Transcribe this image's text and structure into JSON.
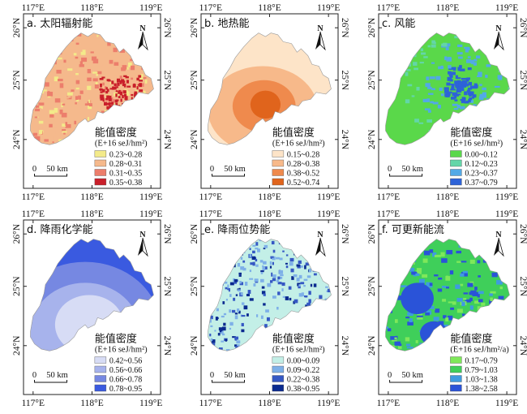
{
  "panels": [
    {
      "id": "a",
      "title": "a. 太阳辐射能",
      "theme": "solar",
      "legend_title": "能值密度",
      "unit": "(E+16 seJ/hm²)",
      "classes": [
        {
          "label": "0.23~0.28",
          "color": "#f3ea8a"
        },
        {
          "label": "0.28~0.31",
          "color": "#f5b98c"
        },
        {
          "label": "0.31~0.35",
          "color": "#ec7e6c"
        },
        {
          "label": "0.35~0.38",
          "color": "#c91f2a"
        }
      ]
    },
    {
      "id": "b",
      "title": "b. 地热能",
      "theme": "geo",
      "legend_title": "能值密度",
      "unit": "(E+16 seJ/hm²)",
      "classes": [
        {
          "label": "0.15~0.28",
          "color": "#fde4c8"
        },
        {
          "label": "0.28~0.38",
          "color": "#f7b98a"
        },
        {
          "label": "0.38~0.52",
          "color": "#ef8a4d"
        },
        {
          "label": "0.52~0.74",
          "color": "#e0641c"
        }
      ]
    },
    {
      "id": "c",
      "title": "c. 风能",
      "theme": "wind",
      "legend_title": "能值密度",
      "unit": "(E+16 seJ/hm²)",
      "classes": [
        {
          "label": "0.00~0.12",
          "color": "#5ad84a"
        },
        {
          "label": "0.12~0.23",
          "color": "#63d6a8"
        },
        {
          "label": "0.23~0.37",
          "color": "#52a9e6"
        },
        {
          "label": "0.37~0.79",
          "color": "#2d63d8"
        }
      ]
    },
    {
      "id": "d",
      "title": "d. 降雨化学能",
      "theme": "rainchem",
      "legend_title": "能值密度",
      "unit": "(E+16 seJ/hm²)",
      "classes": [
        {
          "label": "0.42~0.56",
          "color": "#d7dcf5"
        },
        {
          "label": "0.56~0.66",
          "color": "#a7b3ec"
        },
        {
          "label": "0.66~0.78",
          "color": "#7688e2"
        },
        {
          "label": "0.78~0.95",
          "color": "#3a5ae0"
        }
      ]
    },
    {
      "id": "e",
      "title": "e. 降雨位势能",
      "theme": "rainpot",
      "legend_title": "能值密度",
      "unit": "(E+16 seJ/hm²)",
      "classes": [
        {
          "label": "0.00~0.09",
          "color": "#c3efe7"
        },
        {
          "label": "0.09~0.22",
          "color": "#7eb0e8"
        },
        {
          "label": "0.22~0.38",
          "color": "#3558c4"
        },
        {
          "label": "0.38~0.95",
          "color": "#0a2a8f"
        }
      ]
    },
    {
      "id": "f",
      "title": "f. 可更新能流",
      "theme": "renew",
      "legend_title": "能值密度",
      "unit": "(E+16 seJ/hm²/a)",
      "classes": [
        {
          "label": "0.17~0.79",
          "color": "#7ee85a"
        },
        {
          "label": "0.79~1.03",
          "color": "#3fcf5a"
        },
        {
          "label": "1.03~1.38",
          "color": "#3f9be0"
        },
        {
          "label": "1.38~2.58",
          "color": "#2a53d8"
        }
      ]
    }
  ],
  "axes": {
    "lon_ticks": [
      "117°E",
      "118°E",
      "119°E"
    ],
    "lat_ticks": [
      "26°N",
      "25°N",
      "24°N"
    ]
  },
  "scale_bar": {
    "left_label": "0",
    "right_label": "50 km"
  },
  "north_arrow": {
    "label": "N"
  }
}
